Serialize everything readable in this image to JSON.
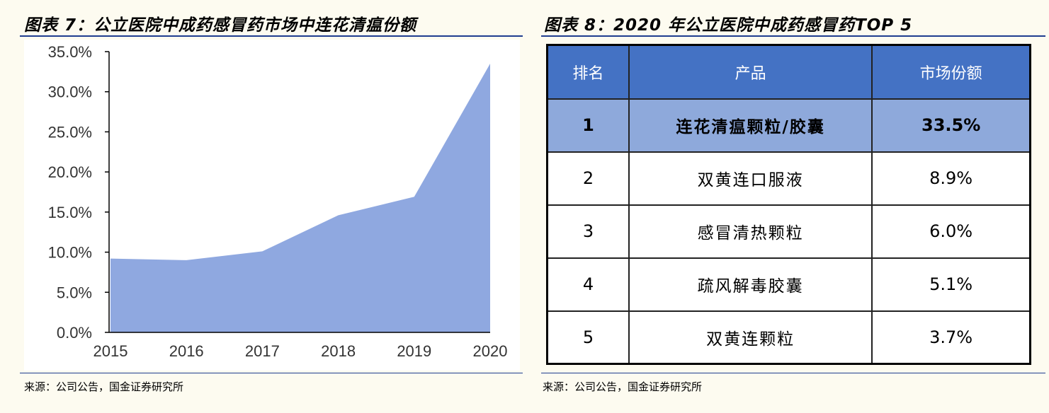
{
  "left": {
    "title": "图表 7：公立医院中成药感冒药市场中连花清瘟份额",
    "source": "来源：公司公告，国金证券研究所"
  },
  "right": {
    "title": "图表 8：2020 年公立医院中成药感冒药TOP 5",
    "source": "来源：公司公告，国金证券研究所",
    "headers": [
      "排名",
      "产品",
      "市场份额"
    ],
    "rows": [
      {
        "rank": "1",
        "product": "连花清瘟颗粒/胶囊",
        "share": "33.5%"
      },
      {
        "rank": "2",
        "product": "双黄连口服液",
        "share": "8.9%"
      },
      {
        "rank": "3",
        "product": "感冒清热颗粒",
        "share": "6.0%"
      },
      {
        "rank": "4",
        "product": "疏风解毒胶囊",
        "share": "5.1%"
      },
      {
        "rank": "5",
        "product": "双黄连颗粒",
        "share": "3.7%"
      }
    ]
  },
  "chart_data": {
    "type": "area",
    "title": "图表 7：公立医院中成药感冒药市场中连花清瘟份额",
    "x": [
      "2015",
      "2016",
      "2017",
      "2018",
      "2019",
      "2020"
    ],
    "values": [
      0.092,
      0.09,
      0.101,
      0.146,
      0.169,
      0.335
    ],
    "yticks": [
      "0.0%",
      "5.0%",
      "10.0%",
      "15.0%",
      "20.0%",
      "25.0%",
      "30.0%",
      "35.0%"
    ],
    "ylim": [
      0,
      0.35
    ],
    "fill_color": "#8fa8e0",
    "grid": false,
    "legend": "none"
  }
}
